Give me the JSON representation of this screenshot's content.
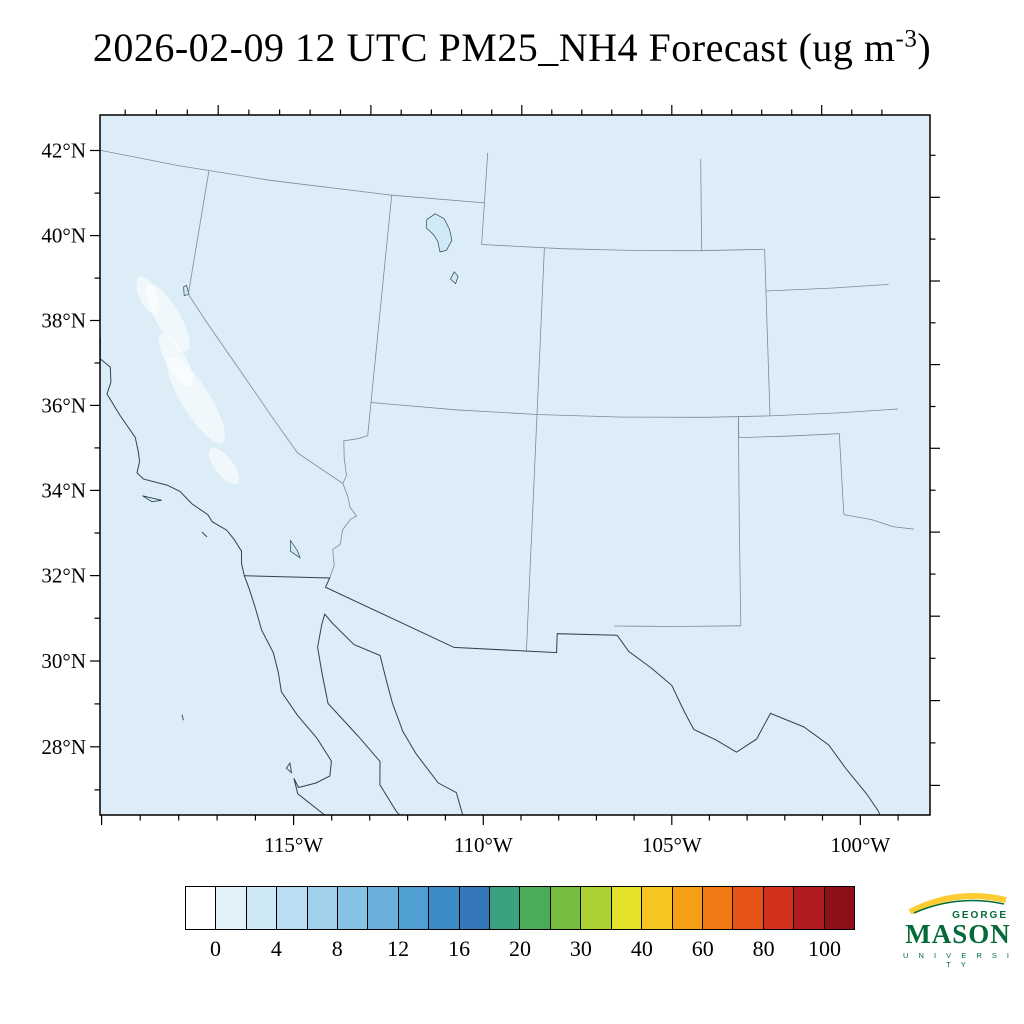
{
  "title": {
    "main": "2026-02-09 12 UTC PM25_NH4 Forecast (ug m",
    "sup": "-3",
    "end": ")"
  },
  "axes": {
    "lat_labels": [
      "42°N",
      "40°N",
      "38°N",
      "36°N",
      "34°N",
      "32°N",
      "30°N",
      "28°N"
    ],
    "lat_values": [
      42,
      40,
      38,
      36,
      34,
      32,
      30,
      28
    ],
    "lon_labels": [
      "115°W",
      "110°W",
      "105°W",
      "100°W"
    ],
    "lon_values": [
      -115,
      -110,
      -105,
      -100
    ]
  },
  "colorbar": {
    "tick_labels": [
      "0",
      "4",
      "8",
      "12",
      "16",
      "20",
      "30",
      "40",
      "60",
      "80",
      "100"
    ],
    "box_colors": [
      "#ffffff",
      "#e2f1fa",
      "#cfe8f6",
      "#b9ddf2",
      "#a0d0ec",
      "#85c2e4",
      "#69b1dc",
      "#4f9fd3",
      "#3d8cc8",
      "#3578ba",
      "#3ba181",
      "#49ad57",
      "#74bd3f",
      "#abd135",
      "#e4e32a",
      "#f7c51f",
      "#f59f16",
      "#ef7913",
      "#e55316",
      "#d4311c",
      "#b01b1e",
      "#8c1015"
    ]
  },
  "logo": {
    "line1": "GEORGE",
    "line2": "MASON",
    "line3": "U N I V E R S I T Y",
    "green": "#046a38",
    "gold": "#ffcc33"
  },
  "colors": {
    "map_bg": "#dcedf7",
    "lake": "#cfe9f6",
    "coast": "#2d4250",
    "state_border": "#7d8a92",
    "field_patch": "rgba(255,255,255,0.6)",
    "frame": "#000000"
  },
  "chart_data": {
    "type": "heatmap",
    "title": "2026-02-09 12 UTC PM25_NH4 Forecast (ug m-3)",
    "variable": "PM25_NH4",
    "units": "ug m-3",
    "valid_time": "2026-02-09 12 UTC",
    "region": "Southwestern United States and northern Mexico",
    "lat_ticks": [
      "42°N",
      "40°N",
      "38°N",
      "36°N",
      "34°N",
      "32°N",
      "30°N",
      "28°N"
    ],
    "lon_ticks": [
      "115°W",
      "110°W",
      "105°W",
      "100°W"
    ],
    "levels": [
      0,
      2,
      4,
      6,
      8,
      10,
      12,
      14,
      16,
      18,
      20,
      25,
      30,
      35,
      40,
      50,
      60,
      70,
      80,
      90,
      100
    ],
    "colorbar_labels": [
      0,
      4,
      8,
      12,
      16,
      20,
      30,
      40,
      60,
      80,
      100
    ],
    "legend_position": "bottom",
    "grid": false,
    "field_summary": "Entire visible domain sits in the lowest bins (about 0-2 ug m-3, palest blue) with a few near-zero whitish patches over California's Central Valley; no elevated PM25_NH4 anywhere on the map."
  },
  "geo": {
    "field_patches": [
      [
        168,
        318,
        12,
        38,
        -30
      ],
      [
        196,
        400,
        14,
        50,
        -32
      ],
      [
        224,
        466,
        9,
        22,
        -38
      ],
      [
        148,
        295,
        9,
        20,
        -24
      ],
      [
        176,
        360,
        10,
        30,
        -30
      ]
    ],
    "lakes": [
      [
        [
          41.65,
          -112.6
        ],
        [
          41.55,
          -112.3
        ],
        [
          41.3,
          -112.1
        ],
        [
          41.05,
          -112.0
        ],
        [
          40.8,
          -112.15
        ],
        [
          40.75,
          -112.35
        ],
        [
          41.0,
          -112.45
        ],
        [
          41.15,
          -112.6
        ],
        [
          41.3,
          -112.85
        ],
        [
          41.5,
          -112.85
        ]
      ],
      [
        [
          40.3,
          -111.85
        ],
        [
          40.2,
          -111.72
        ],
        [
          40.02,
          -111.78
        ],
        [
          40.12,
          -111.95
        ]
      ],
      [
        [
          39.2,
          -120.1
        ],
        [
          39.0,
          -119.98
        ],
        [
          38.95,
          -120.12
        ],
        [
          39.15,
          -120.18
        ]
      ],
      [
        [
          33.5,
          -115.95
        ],
        [
          33.28,
          -115.72
        ],
        [
          33.12,
          -115.62
        ],
        [
          33.25,
          -115.92
        ]
      ]
    ],
    "state_borders": [
      [
        [
          42,
          -124.2
        ],
        [
          42,
          -121
        ],
        [
          42,
          -118
        ],
        [
          42,
          -114.05
        ],
        [
          42,
          -111.05
        ]
      ],
      [
        [
          42,
          -120
        ],
        [
          40.5,
          -120
        ],
        [
          39,
          -120
        ],
        [
          38.4,
          -119.3
        ],
        [
          37.4,
          -118.1
        ],
        [
          36.3,
          -116.85
        ],
        [
          35.6,
          -116.05
        ],
        [
          35.0,
          -114.63
        ]
      ],
      [
        [
          42,
          -114.05
        ],
        [
          40,
          -114.05
        ],
        [
          38.5,
          -114.05
        ],
        [
          37,
          -114.05
        ],
        [
          36.2,
          -114.05
        ]
      ],
      [
        [
          36.2,
          -114.05
        ],
        [
          36.1,
          -114.35
        ],
        [
          36.02,
          -114.74
        ],
        [
          35.6,
          -114.67
        ],
        [
          35.2,
          -114.55
        ],
        [
          35.0,
          -114.63
        ]
      ],
      [
        [
          35.0,
          -114.63
        ],
        [
          34.7,
          -114.45
        ],
        [
          34.45,
          -114.35
        ],
        [
          34.26,
          -114.14
        ],
        [
          34.17,
          -114.3
        ],
        [
          33.9,
          -114.5
        ],
        [
          33.55,
          -114.52
        ],
        [
          33.4,
          -114.72
        ],
        [
          33.03,
          -114.63
        ],
        [
          32.72,
          -114.72
        ]
      ],
      [
        [
          43.2,
          -111.05
        ],
        [
          42,
          -111.05
        ],
        [
          41,
          -111.05
        ]
      ],
      [
        [
          41,
          -111.05
        ],
        [
          41,
          -108.5
        ],
        [
          41,
          -106
        ],
        [
          41,
          -104.05
        ]
      ],
      [
        [
          43.2,
          -104.05
        ],
        [
          42,
          -104.05
        ],
        [
          41,
          -104.05
        ]
      ],
      [
        [
          41,
          -104.05
        ],
        [
          41,
          -102.05
        ]
      ],
      [
        [
          41,
          -102.05
        ],
        [
          39,
          -102.05
        ],
        [
          37,
          -102.05
        ]
      ],
      [
        [
          41,
          -109.05
        ],
        [
          39,
          -109.05
        ],
        [
          37,
          -109.05
        ]
      ],
      [
        [
          37,
          -114.05
        ],
        [
          37,
          -111.5
        ],
        [
          37,
          -109.05
        ],
        [
          37,
          -106.5
        ],
        [
          37,
          -104
        ],
        [
          37,
          -102.05
        ]
      ],
      [
        [
          37,
          -102.05
        ],
        [
          37,
          -100
        ],
        [
          37,
          -98.2
        ]
      ],
      [
        [
          37,
          -109.05
        ],
        [
          35,
          -109.05
        ],
        [
          33,
          -109.05
        ],
        [
          31.33,
          -109.05
        ]
      ],
      [
        [
          37,
          -103.0
        ],
        [
          34.6,
          -103.04
        ],
        [
          32,
          -103.06
        ]
      ],
      [
        [
          32,
          -103.06
        ],
        [
          32,
          -104.9
        ],
        [
          32,
          -106.62
        ]
      ],
      [
        [
          36.5,
          -103.0
        ],
        [
          36.5,
          -101.6
        ],
        [
          36.5,
          -100.0
        ]
      ],
      [
        [
          36.5,
          -100.0
        ],
        [
          35.5,
          -100.0
        ],
        [
          34.56,
          -100.0
        ]
      ],
      [
        [
          34.56,
          -100.0
        ],
        [
          34.4,
          -99.2
        ],
        [
          34.2,
          -98.6
        ],
        [
          34.1,
          -98.0
        ]
      ],
      [
        [
          37,
          -103.0
        ],
        [
          36.5,
          -103.0
        ]
      ],
      [
        [
          40,
          -102.05
        ],
        [
          40,
          -100
        ],
        [
          40,
          -98.2
        ]
      ]
    ],
    "coastlines": [
      [
        [
          39.7,
          -123.85
        ],
        [
          39.2,
          -123.75
        ],
        [
          38.9,
          -123.7
        ],
        [
          38.45,
          -123.2
        ],
        [
          38.3,
          -123.0
        ],
        [
          38.0,
          -122.95
        ],
        [
          37.9,
          -122.65
        ],
        [
          37.8,
          -122.5
        ],
        [
          37.55,
          -122.4
        ],
        [
          37.1,
          -122.3
        ],
        [
          36.95,
          -121.95
        ],
        [
          36.6,
          -121.85
        ],
        [
          36.3,
          -121.9
        ],
        [
          35.85,
          -121.4
        ],
        [
          35.4,
          -120.85
        ],
        [
          35.1,
          -120.7
        ],
        [
          34.85,
          -120.6
        ],
        [
          34.57,
          -120.62
        ],
        [
          34.45,
          -120.4
        ],
        [
          34.4,
          -119.7
        ],
        [
          34.3,
          -119.3
        ],
        [
          34.05,
          -118.9
        ],
        [
          33.85,
          -118.4
        ],
        [
          33.7,
          -118.25
        ],
        [
          33.55,
          -117.8
        ],
        [
          33.35,
          -117.55
        ],
        [
          33.1,
          -117.3
        ],
        [
          32.8,
          -117.25
        ],
        [
          32.53,
          -117.13
        ],
        [
          32.25,
          -116.95
        ],
        [
          31.8,
          -116.7
        ],
        [
          31.3,
          -116.45
        ],
        [
          30.8,
          -116.05
        ],
        [
          30.35,
          -115.85
        ],
        [
          29.9,
          -115.7
        ],
        [
          29.4,
          -115.2
        ],
        [
          28.9,
          -114.6
        ],
        [
          28.4,
          -114.15
        ],
        [
          28.05,
          -114.15
        ],
        [
          27.85,
          -114.5
        ],
        [
          27.7,
          -114.95
        ],
        [
          27.9,
          -115.1
        ],
        [
          27.55,
          -114.95
        ],
        [
          27.1,
          -114.15
        ],
        [
          26.7,
          -113.55
        ],
        [
          26.35,
          -113.05
        ]
      ],
      [
        [
          26.35,
          -111.2
        ],
        [
          27.0,
          -111.85
        ],
        [
          27.35,
          -112.3
        ],
        [
          27.95,
          -112.8
        ],
        [
          28.5,
          -112.85
        ],
        [
          29.05,
          -113.5
        ],
        [
          29.75,
          -114.4
        ],
        [
          30.45,
          -114.65
        ],
        [
          31.05,
          -114.85
        ],
        [
          31.6,
          -114.8
        ],
        [
          31.85,
          -114.75
        ],
        [
          31.65,
          -114.5
        ],
        [
          31.2,
          -113.85
        ],
        [
          31.0,
          -113.1
        ],
        [
          30.5,
          -112.9
        ],
        [
          29.9,
          -112.65
        ],
        [
          29.25,
          -112.3
        ],
        [
          28.75,
          -111.9
        ],
        [
          28.1,
          -111.25
        ],
        [
          27.9,
          -110.75
        ],
        [
          27.15,
          -110.45
        ],
        [
          26.7,
          -109.8
        ],
        [
          26.35,
          -109.5
        ]
      ]
    ],
    "intl_borders": [
      [
        [
          32.53,
          -117.13
        ],
        [
          32.72,
          -114.72
        ],
        [
          32.49,
          -114.81
        ],
        [
          31.33,
          -111.07
        ],
        [
          31.33,
          -108.21
        ],
        [
          31.78,
          -108.21
        ],
        [
          31.78,
          -106.53
        ]
      ],
      [
        [
          31.78,
          -106.53
        ],
        [
          31.4,
          -106.2
        ],
        [
          31.0,
          -105.55
        ],
        [
          30.6,
          -105.0
        ],
        [
          30.0,
          -104.67
        ],
        [
          29.55,
          -104.4
        ],
        [
          29.3,
          -103.8
        ],
        [
          29.0,
          -103.25
        ],
        [
          29.3,
          -102.7
        ],
        [
          29.9,
          -102.3
        ],
        [
          29.55,
          -101.4
        ],
        [
          29.1,
          -100.75
        ],
        [
          28.5,
          -100.3
        ],
        [
          27.9,
          -99.8
        ],
        [
          27.5,
          -99.53
        ],
        [
          27.0,
          -99.3
        ],
        [
          26.5,
          -99.1
        ]
      ]
    ],
    "islands": [
      [
        [
          34.05,
          -120.35
        ],
        [
          33.95,
          -120.05
        ],
        [
          34.02,
          -119.78
        ]
      ],
      [
        [
          33.42,
          -118.5
        ],
        [
          33.32,
          -118.33
        ]
      ],
      [
        [
          28.25,
          -115.25
        ],
        [
          28.03,
          -115.18
        ],
        [
          28.12,
          -115.33
        ]
      ],
      [
        [
          29.05,
          -118.3
        ],
        [
          28.93,
          -118.24
        ]
      ]
    ]
  }
}
